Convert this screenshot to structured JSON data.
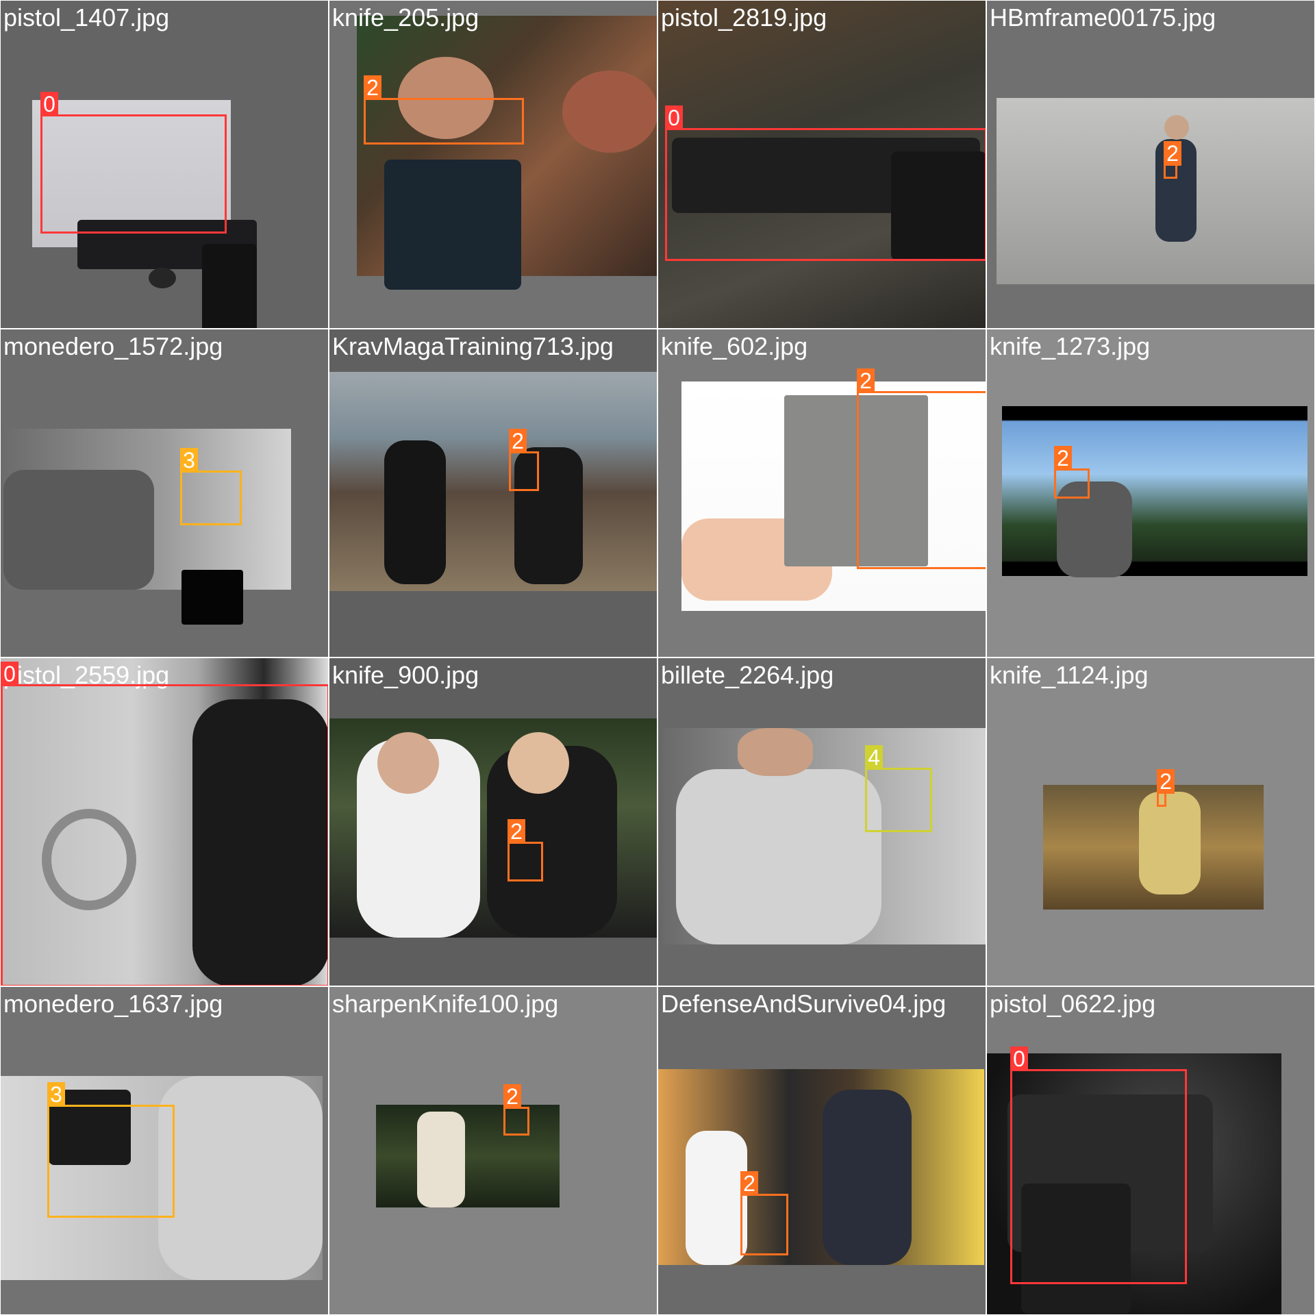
{
  "class_colors": {
    "0": "#ff3838",
    "2": "#ff701f",
    "3": "#ffb21d",
    "4": "#cfd231"
  },
  "tiles": [
    {
      "filename": "pistol_1407.jpg",
      "boxes": [
        {
          "cls": "0"
        }
      ]
    },
    {
      "filename": "knife_205.jpg",
      "boxes": [
        {
          "cls": "2"
        }
      ]
    },
    {
      "filename": "pistol_2819.jpg",
      "boxes": [
        {
          "cls": "0"
        }
      ]
    },
    {
      "filename": "HBmframe00175.jpg",
      "boxes": [
        {
          "cls": "2"
        }
      ]
    },
    {
      "filename": "monedero_1572.jpg",
      "boxes": [
        {
          "cls": "3"
        }
      ]
    },
    {
      "filename": "KravMagaTraining713.jpg",
      "boxes": [
        {
          "cls": "2"
        }
      ]
    },
    {
      "filename": "knife_602.jpg",
      "boxes": [
        {
          "cls": "2"
        }
      ]
    },
    {
      "filename": "knife_1273.jpg",
      "boxes": [
        {
          "cls": "2"
        }
      ]
    },
    {
      "filename": "pistol_2559.jpg",
      "boxes": [
        {
          "cls": "0"
        }
      ]
    },
    {
      "filename": "knife_900.jpg",
      "boxes": [
        {
          "cls": "2"
        }
      ]
    },
    {
      "filename": "billete_2264.jpg",
      "boxes": [
        {
          "cls": "4"
        }
      ]
    },
    {
      "filename": "knife_1124.jpg",
      "boxes": [
        {
          "cls": "2"
        }
      ]
    },
    {
      "filename": "monedero_1637.jpg",
      "boxes": [
        {
          "cls": "3"
        }
      ]
    },
    {
      "filename": "sharpenKnife100.jpg",
      "boxes": [
        {
          "cls": "2"
        }
      ]
    },
    {
      "filename": "DefenseAndSurvive04.jpg",
      "boxes": [
        {
          "cls": "2"
        }
      ]
    },
    {
      "filename": "pistol_0622.jpg",
      "boxes": [
        {
          "cls": "0"
        }
      ]
    }
  ]
}
